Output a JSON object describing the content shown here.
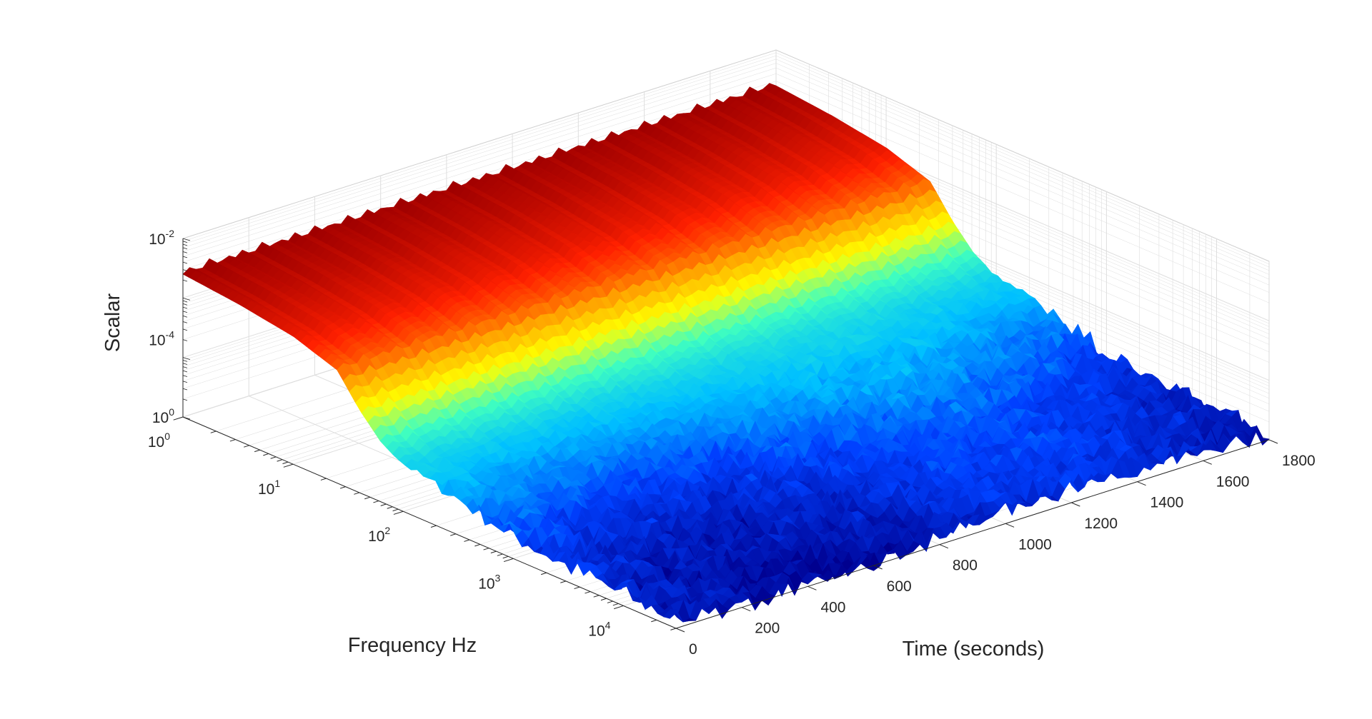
{
  "chart_data": {
    "type": "surface",
    "zlabel": "Scalar",
    "xlabel": "Frequency Hz",
    "ylabel": "Time (seconds)",
    "x_scale": "log",
    "z_scale": "log",
    "x_range": [
      1,
      30000
    ],
    "y_range": [
      0,
      1800
    ],
    "z_range": [
      1e-05,
      0.01
    ],
    "x_ticks": [
      {
        "base": "10",
        "exp": "0"
      },
      {
        "base": "10",
        "exp": "1"
      },
      {
        "base": "10",
        "exp": "2"
      },
      {
        "base": "10",
        "exp": "3"
      },
      {
        "base": "10",
        "exp": "4"
      }
    ],
    "y_ticks": [
      "0",
      "200",
      "400",
      "600",
      "800",
      "1000",
      "1200",
      "1400",
      "1600",
      "1800"
    ],
    "z_ticks": [
      {
        "base": "10",
        "exp": "-4"
      },
      {
        "base": "10",
        "exp": "-2"
      }
    ],
    "grid": true,
    "colormap": [
      "#00008f",
      "#0040ff",
      "#00c0ff",
      "#40ffbf",
      "#ffff00",
      "#ffa000",
      "#ff2000",
      "#a00000"
    ],
    "frequency_profile_log10": [
      {
        "log_freq": 0.0,
        "log_value": -2.6
      },
      {
        "log_freq": 0.5,
        "log_value": -2.7
      },
      {
        "log_freq": 1.0,
        "log_value": -2.85
      },
      {
        "log_freq": 1.4,
        "log_value": -3.1
      },
      {
        "log_freq": 1.6,
        "log_value": -3.6
      },
      {
        "log_freq": 1.8,
        "log_value": -4.0
      },
      {
        "log_freq": 2.0,
        "log_value": -4.2
      },
      {
        "log_freq": 2.5,
        "log_value": -4.4
      },
      {
        "log_freq": 3.0,
        "log_value": -4.6
      },
      {
        "log_freq": 3.5,
        "log_value": -4.75
      },
      {
        "log_freq": 4.0,
        "log_value": -4.8
      },
      {
        "log_freq": 4.5,
        "log_value": -4.85
      }
    ],
    "time_ridge_count": 34
  }
}
